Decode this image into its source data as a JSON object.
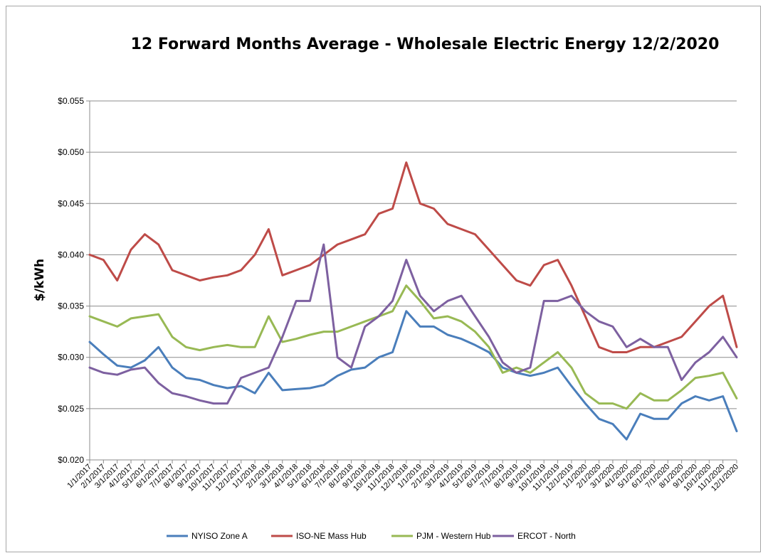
{
  "chart_data": {
    "type": "line",
    "title": "12 Forward Months Average - Wholesale Electric Energy 12/2/2020",
    "ylabel": "$/kWh",
    "xlabel": "",
    "ylim": [
      0.02,
      0.055
    ],
    "y_ticks": [
      0.02,
      0.025,
      0.03,
      0.035,
      0.04,
      0.045,
      0.05,
      0.055
    ],
    "y_tick_labels": [
      "$0.020",
      "$0.025",
      "$0.030",
      "$0.035",
      "$0.040",
      "$0.045",
      "$0.050",
      "$0.055"
    ],
    "x_tick_labels": [
      "1/1/2017",
      "2/1/2017",
      "3/1/2017",
      "4/1/2017",
      "5/1/2017",
      "6/1/2017",
      "7/1/2017",
      "8/1/2017",
      "9/1/2017",
      "10/1/2017",
      "11/1/2017",
      "12/1/2017",
      "1/1/2018",
      "2/1/2018",
      "3/1/2018",
      "4/1/2018",
      "5/1/2018",
      "6/1/2018",
      "7/1/2018",
      "8/1/2018",
      "9/1/2018",
      "10/1/2018",
      "11/1/2018",
      "12/1/2018",
      "1/1/2019",
      "2/1/2019",
      "3/1/2019",
      "4/1/2019",
      "5/1/2019",
      "6/1/2019",
      "7/1/2019",
      "8/1/2019",
      "9/1/2019",
      "10/1/2019",
      "11/1/2019",
      "12/1/2019",
      "1/1/2020",
      "2/1/2020",
      "3/1/2020",
      "4/1/2020",
      "5/1/2020",
      "6/1/2020",
      "7/1/2020",
      "8/1/2020",
      "9/1/2020",
      "10/1/2020",
      "11/1/2020",
      "12/1/2020"
    ],
    "grid": true,
    "legend_position": "bottom",
    "x": [
      "2017-01",
      "2017-02",
      "2017-03",
      "2017-04",
      "2017-05",
      "2017-06",
      "2017-07",
      "2017-08",
      "2017-09",
      "2017-10",
      "2017-11",
      "2017-12",
      "2018-01",
      "2018-02",
      "2018-03",
      "2018-04",
      "2018-05",
      "2018-06",
      "2018-07",
      "2018-08",
      "2018-09",
      "2018-10",
      "2018-11",
      "2018-12",
      "2019-01",
      "2019-02",
      "2019-03",
      "2019-04",
      "2019-05",
      "2019-06",
      "2019-07",
      "2019-08",
      "2019-09",
      "2019-10",
      "2019-11",
      "2019-12",
      "2020-01",
      "2020-02",
      "2020-03",
      "2020-04",
      "2020-05",
      "2020-06",
      "2020-07",
      "2020-08",
      "2020-09",
      "2020-10",
      "2020-11",
      "2020-12"
    ],
    "series": [
      {
        "name": "NYISO Zone A",
        "color": "#4a7ebb",
        "values": [
          0.0315,
          0.0303,
          0.0292,
          0.029,
          0.0297,
          0.031,
          0.029,
          0.028,
          0.0278,
          0.0273,
          0.027,
          0.0272,
          0.0265,
          0.0285,
          0.0268,
          0.0269,
          0.027,
          0.0273,
          0.0282,
          0.0288,
          0.029,
          0.03,
          0.0305,
          0.0345,
          0.033,
          0.033,
          0.0322,
          0.0318,
          0.0312,
          0.0305,
          0.029,
          0.0285,
          0.0282,
          0.0285,
          0.029,
          0.0272,
          0.0255,
          0.024,
          0.0235,
          0.022,
          0.0245,
          0.024,
          0.024,
          0.0255,
          0.0262,
          0.0258,
          0.0262,
          0.0228
        ]
      },
      {
        "name": "ISO-NE Mass Hub",
        "color": "#be4b48",
        "values": [
          0.04,
          0.0395,
          0.0375,
          0.0405,
          0.042,
          0.041,
          0.0385,
          0.038,
          0.0375,
          0.0378,
          0.038,
          0.0385,
          0.04,
          0.0425,
          0.038,
          0.0385,
          0.039,
          0.04,
          0.041,
          0.0415,
          0.042,
          0.044,
          0.0445,
          0.049,
          0.045,
          0.0445,
          0.043,
          0.0425,
          0.042,
          0.0405,
          0.039,
          0.0375,
          0.037,
          0.039,
          0.0395,
          0.037,
          0.034,
          0.031,
          0.0305,
          0.0305,
          0.031,
          0.031,
          0.0315,
          0.032,
          0.0335,
          0.035,
          0.036,
          0.031
        ]
      },
      {
        "name": "PJM - Western Hub",
        "color": "#98b954",
        "values": [
          0.034,
          0.0335,
          0.033,
          0.0338,
          0.034,
          0.0342,
          0.032,
          0.031,
          0.0307,
          0.031,
          0.0312,
          0.031,
          0.031,
          0.034,
          0.0315,
          0.0318,
          0.0322,
          0.0325,
          0.0325,
          0.033,
          0.0335,
          0.034,
          0.0345,
          0.037,
          0.0355,
          0.0338,
          0.034,
          0.0335,
          0.0325,
          0.031,
          0.0285,
          0.029,
          0.0285,
          0.0295,
          0.0305,
          0.029,
          0.0265,
          0.0255,
          0.0255,
          0.025,
          0.0265,
          0.0258,
          0.0258,
          0.0268,
          0.028,
          0.0282,
          0.0285,
          0.026
        ]
      },
      {
        "name": "ERCOT - North",
        "color": "#7d60a0",
        "values": [
          0.029,
          0.0285,
          0.0283,
          0.0288,
          0.029,
          0.0275,
          0.0265,
          0.0262,
          0.0258,
          0.0255,
          0.0255,
          0.028,
          0.0285,
          0.029,
          0.032,
          0.0355,
          0.0355,
          0.041,
          0.03,
          0.029,
          0.033,
          0.034,
          0.0355,
          0.0395,
          0.036,
          0.0345,
          0.0355,
          0.036,
          0.034,
          0.032,
          0.0295,
          0.0285,
          0.029,
          0.0355,
          0.0355,
          0.036,
          0.0345,
          0.0335,
          0.033,
          0.031,
          0.0318,
          0.031,
          0.031,
          0.0278,
          0.0295,
          0.0305,
          0.032,
          0.03
        ]
      }
    ]
  }
}
